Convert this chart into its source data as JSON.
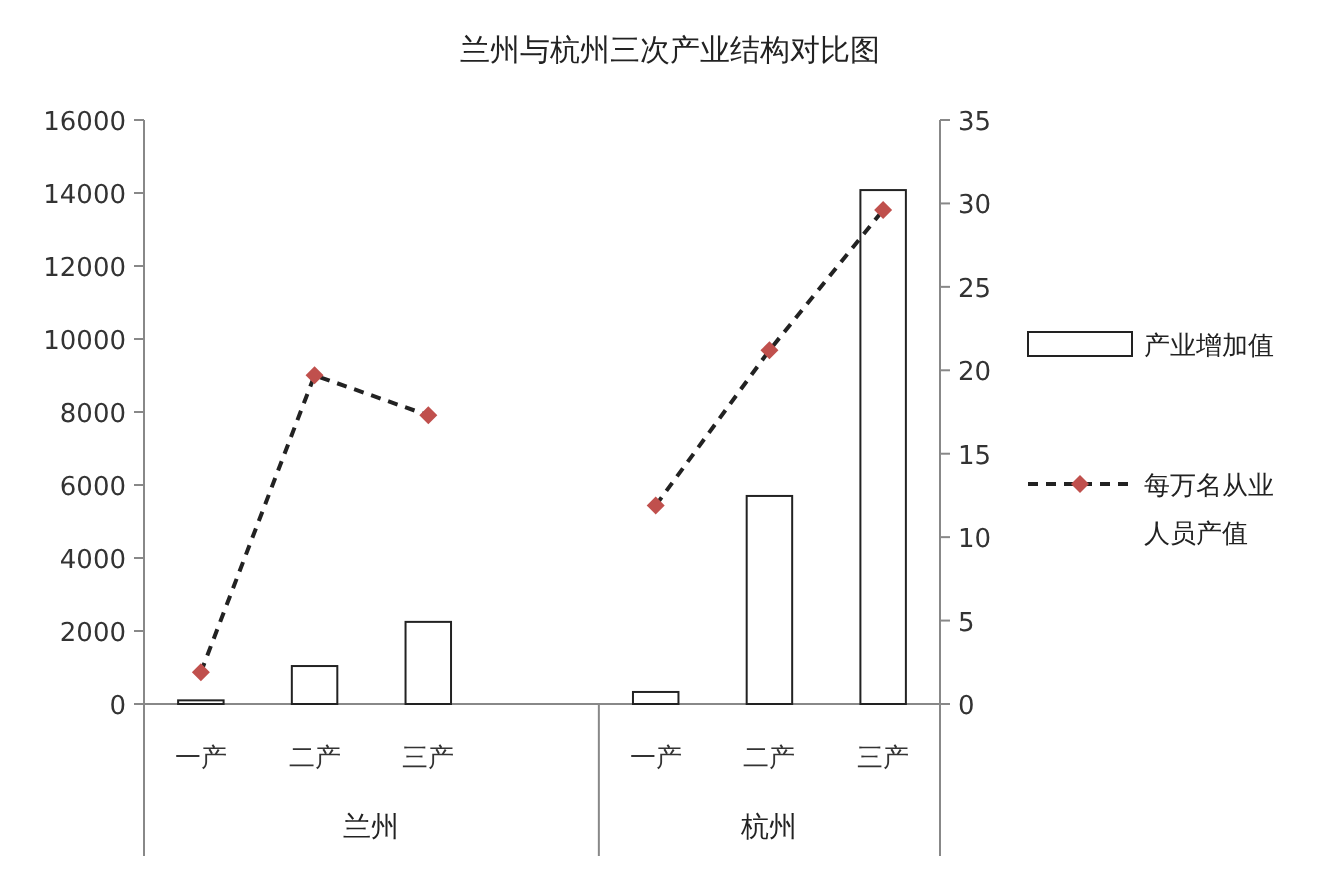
{
  "chart_data": {
    "type": "bar",
    "title": "兰州与杭州三次产业结构对比图",
    "categories": [
      "一产",
      "二产",
      "三产",
      null,
      "一产",
      "二产",
      "三产"
    ],
    "series": [
      {
        "name": "产业增加值",
        "color": "#ffffff",
        "values": [
          100,
          1040,
          2250,
          null,
          330,
          5700,
          14080
        ]
      },
      {
        "name": "每万名从业人员产值",
        "type": "line",
        "axis": "y2",
        "color": "#c0504d",
        "values": [
          1.9,
          19.7,
          17.3,
          null,
          11.9,
          21.2,
          29.6
        ]
      }
    ],
    "marker": "diamond",
    "line_style": "dashed",
    "ylim": [
      0,
      16000
    ],
    "yticks": [
      0,
      2000,
      4000,
      6000,
      8000,
      10000,
      12000,
      14000,
      16000
    ],
    "y2lim": [
      0,
      35
    ],
    "y2ticks": [
      0,
      5,
      10,
      15,
      20,
      25,
      30,
      35
    ],
    "annotations": [
      "兰州",
      "杭州"
    ],
    "legend": "right",
    "grid": false
  }
}
